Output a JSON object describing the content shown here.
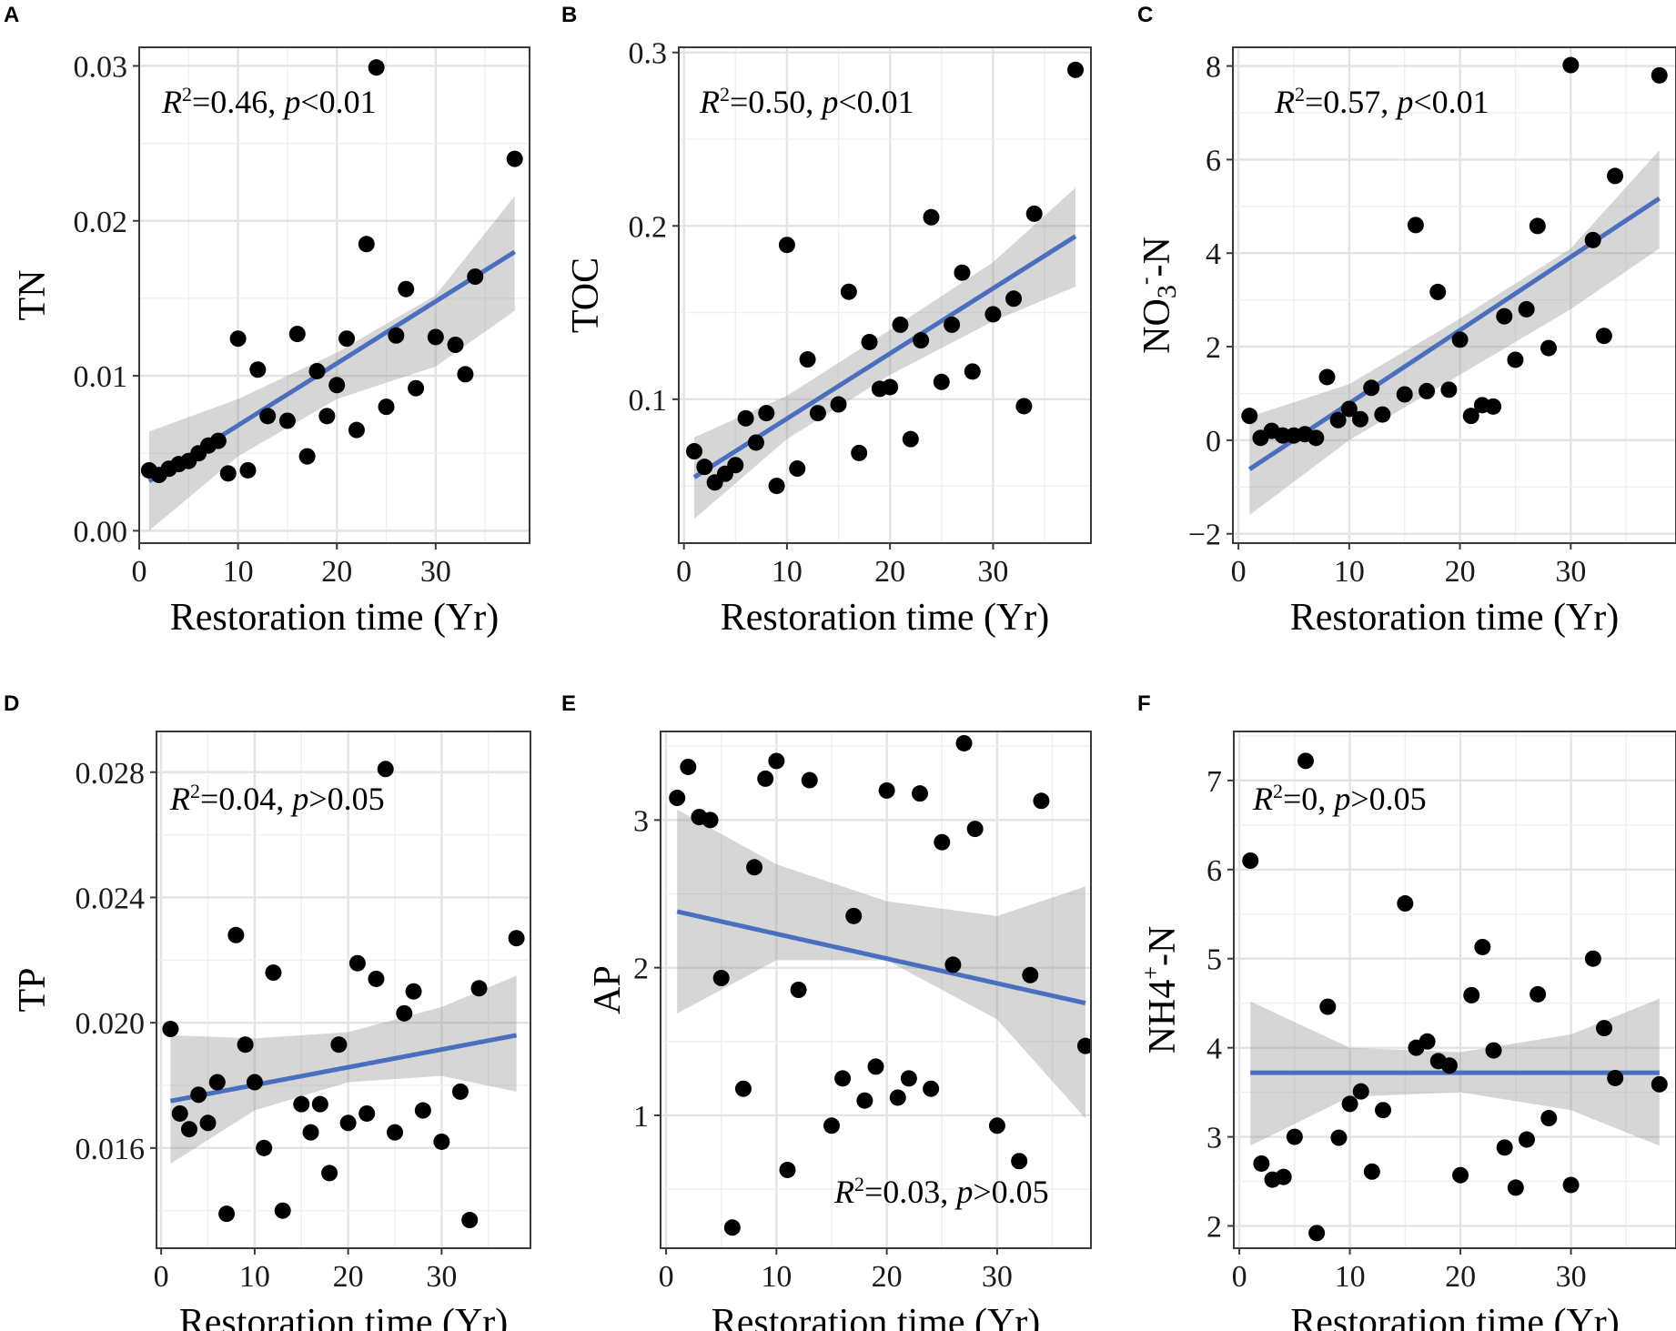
{
  "figure": {
    "colors": {
      "points": "#000000",
      "fit_line": "#4a6fbf",
      "ci_band": "#999999",
      "grid": "#e3e3e3",
      "frame": "#3a3a3a"
    }
  },
  "chart_data": [
    {
      "panel": "A",
      "type": "scatter",
      "xlabel": "Restoration time (Yr)",
      "ylabel": "TN",
      "xlim": [
        0,
        39.5
      ],
      "ylim": [
        -0.0008,
        0.0312
      ],
      "xticks": [
        0,
        10,
        20,
        30
      ],
      "xtick_labels": [
        "0",
        "10",
        "20",
        "30"
      ],
      "yticks": [
        0,
        0.01,
        0.02,
        0.03
      ],
      "ytick_labels": [
        "0.00",
        "0.01",
        "0.02",
        "0.03"
      ],
      "annotation": {
        "r2_label": "R",
        "r2_sup": "2",
        "r2_value": "=0.46, ",
        "p_label": "p",
        "p_value": "<0.01",
        "position": "top-left"
      },
      "fit": {
        "x": [
          1,
          38
        ],
        "y": [
          0.0032,
          0.018
        ]
      },
      "ci": {
        "x": [
          1,
          10,
          20,
          30,
          38
        ],
        "upper": [
          0.0064,
          0.0085,
          0.0115,
          0.0152,
          0.0216
        ],
        "lower": [
          0.0,
          0.0048,
          0.0085,
          0.0106,
          0.0142
        ]
      },
      "points": {
        "x": [
          1,
          2,
          3,
          4,
          5,
          6,
          7,
          8,
          9,
          10,
          11,
          12,
          13,
          15,
          16,
          17,
          18,
          19,
          20,
          21,
          22,
          23,
          25,
          26,
          27,
          28,
          30,
          32,
          33,
          34,
          24,
          38
        ],
        "y": [
          0.0039,
          0.0036,
          0.004,
          0.0043,
          0.0045,
          0.005,
          0.0055,
          0.0058,
          0.0037,
          0.0124,
          0.0039,
          0.0104,
          0.0074,
          0.0071,
          0.0127,
          0.0048,
          0.0103,
          0.0074,
          0.0094,
          0.0124,
          0.0065,
          0.0185,
          0.008,
          0.0126,
          0.0156,
          0.0092,
          0.0125,
          0.012,
          0.0101,
          0.0164,
          0.0299,
          0.024
        ]
      }
    },
    {
      "panel": "B",
      "type": "scatter",
      "xlabel": "Restoration time (Yr)",
      "ylabel": "TOC",
      "xlim": [
        -0.5,
        39.5
      ],
      "ylim": [
        0.017,
        0.303
      ],
      "xticks": [
        0,
        10,
        20,
        30
      ],
      "xtick_labels": [
        "0",
        "10",
        "20",
        "30"
      ],
      "yticks": [
        0.1,
        0.2,
        0.3
      ],
      "ytick_labels": [
        "0.1",
        "0.2",
        "0.3"
      ],
      "annotation": {
        "r2_label": "R",
        "r2_sup": "2",
        "r2_value": "=0.50, ",
        "p_label": "p",
        "p_value": "<0.01",
        "position": "top-left"
      },
      "fit": {
        "x": [
          1,
          38
        ],
        "y": [
          0.055,
          0.194
        ]
      },
      "ci": {
        "x": [
          1,
          10,
          20,
          30,
          38
        ],
        "upper": [
          0.078,
          0.102,
          0.14,
          0.179,
          0.222
        ],
        "lower": [
          0.031,
          0.077,
          0.114,
          0.145,
          0.165
        ]
      },
      "points": {
        "x": [
          1,
          2,
          3,
          4,
          5,
          6,
          7,
          8,
          9,
          10,
          11,
          12,
          13,
          15,
          16,
          17,
          18,
          19,
          20,
          21,
          22,
          23,
          24,
          25,
          26,
          27,
          28,
          30,
          32,
          33,
          34,
          38
        ],
        "y": [
          0.07,
          0.061,
          0.052,
          0.057,
          0.062,
          0.089,
          0.075,
          0.092,
          0.05,
          0.189,
          0.06,
          0.123,
          0.092,
          0.097,
          0.162,
          0.069,
          0.133,
          0.106,
          0.107,
          0.143,
          0.077,
          0.134,
          0.205,
          0.11,
          0.143,
          0.173,
          0.116,
          0.149,
          0.158,
          0.096,
          0.207,
          0.29
        ]
      }
    },
    {
      "panel": "C",
      "type": "scatter",
      "xlabel": "Restoration time (Yr)",
      "ylabel": "NO",
      "ylabel_sub": "3",
      "ylabel_sup": "-",
      "ylabel_tail": "-N",
      "xlim": [
        -0.5,
        39.5
      ],
      "ylim": [
        -2.2,
        8.4
      ],
      "xticks": [
        0,
        10,
        20,
        30
      ],
      "xtick_labels": [
        "0",
        "10",
        "20",
        "30"
      ],
      "yticks": [
        -2,
        0,
        2,
        4,
        6,
        8
      ],
      "ytick_labels": [
        "−2",
        "0",
        "2",
        "4",
        "6",
        "8"
      ],
      "annotation": {
        "r2_label": "R",
        "r2_sup": "2",
        "r2_value": "=0.57, ",
        "p_label": "p",
        "p_value": "<0.01",
        "position": "top-left"
      },
      "fit": {
        "x": [
          1,
          38
        ],
        "y": [
          -0.62,
          5.17
        ]
      },
      "ci": {
        "x": [
          1,
          10,
          20,
          30,
          38
        ],
        "upper": [
          0.5,
          1.2,
          2.6,
          4.1,
          6.2
        ],
        "lower": [
          -1.6,
          0.0,
          1.4,
          2.8,
          4.1
        ]
      },
      "points": {
        "x": [
          1,
          2,
          3,
          4,
          5,
          6,
          7,
          8,
          9,
          10,
          11,
          12,
          13,
          15,
          16,
          17,
          18,
          19,
          20,
          21,
          22,
          23,
          24,
          25,
          26,
          27,
          28,
          30,
          32,
          33,
          34,
          38
        ],
        "y": [
          0.52,
          0.05,
          0.2,
          0.1,
          0.1,
          0.13,
          0.05,
          1.35,
          0.43,
          0.67,
          0.45,
          1.12,
          0.55,
          0.98,
          4.6,
          1.05,
          3.17,
          1.08,
          2.15,
          0.52,
          0.75,
          0.72,
          2.65,
          1.72,
          2.8,
          4.58,
          1.97,
          8.02,
          4.28,
          2.23,
          5.65,
          7.8
        ]
      }
    },
    {
      "panel": "D",
      "type": "scatter",
      "xlabel": "Restoration time (Yr)",
      "ylabel": "TP",
      "xlim": [
        -0.5,
        39.5
      ],
      "ylim": [
        0.0128,
        0.0293
      ],
      "xticks": [
        0,
        10,
        20,
        30
      ],
      "xtick_labels": [
        "0",
        "10",
        "20",
        "30"
      ],
      "yticks": [
        0.016,
        0.02,
        0.024,
        0.028
      ],
      "ytick_labels": [
        "0.016",
        "0.020",
        "0.024",
        "0.028"
      ],
      "annotation": {
        "r2_label": "R",
        "r2_sup": "2",
        "r2_value": "=0.04, ",
        "p_label": "p",
        "p_value": ">0.05",
        "position": "top-left"
      },
      "fit": {
        "x": [
          1,
          38
        ],
        "y": [
          0.0175,
          0.0196
        ]
      },
      "ci": {
        "x": [
          1,
          10,
          20,
          30,
          38
        ],
        "upper": [
          0.0196,
          0.0195,
          0.0197,
          0.0205,
          0.0215
        ],
        "lower": [
          0.0155,
          0.0172,
          0.0181,
          0.0183,
          0.0178
        ]
      },
      "points": {
        "x": [
          1,
          2,
          3,
          4,
          5,
          6,
          7,
          8,
          9,
          10,
          11,
          12,
          13,
          15,
          16,
          17,
          18,
          19,
          20,
          21,
          22,
          23,
          24,
          25,
          26,
          27,
          28,
          30,
          32,
          33,
          34,
          38
        ],
        "y": [
          0.0198,
          0.0171,
          0.0166,
          0.0177,
          0.0168,
          0.0181,
          0.0139,
          0.0228,
          0.0193,
          0.0181,
          0.016,
          0.0216,
          0.014,
          0.0174,
          0.0165,
          0.0174,
          0.0152,
          0.0193,
          0.0168,
          0.0219,
          0.0171,
          0.0214,
          0.0281,
          0.0165,
          0.0203,
          0.021,
          0.0172,
          0.0162,
          0.0178,
          0.0137,
          0.0211,
          0.0227
        ]
      }
    },
    {
      "panel": "E",
      "type": "scatter",
      "xlabel": "Restoration time (Yr)",
      "ylabel": "AP",
      "xlim": [
        -0.5,
        38.5
      ],
      "ylim": [
        0.1,
        3.6
      ],
      "xticks": [
        0,
        10,
        20,
        30
      ],
      "xtick_labels": [
        "0",
        "10",
        "20",
        "30"
      ],
      "yticks": [
        1,
        2,
        3
      ],
      "ytick_labels": [
        "1",
        "2",
        "3"
      ],
      "annotation": {
        "r2_label": "R",
        "r2_sup": "2",
        "r2_value": "=0.03, ",
        "p_label": "p",
        "p_value": ">0.05",
        "position": "bottom-right"
      },
      "fit": {
        "x": [
          1,
          38
        ],
        "y": [
          2.38,
          1.76
        ]
      },
      "ci": {
        "x": [
          1,
          10,
          20,
          30,
          38
        ],
        "upper": [
          3.07,
          2.7,
          2.45,
          2.35,
          2.55
        ],
        "lower": [
          1.69,
          2.05,
          2.05,
          1.65,
          0.98
        ]
      },
      "points": {
        "x": [
          1,
          2,
          3,
          4,
          5,
          6,
          7,
          8,
          9,
          10,
          11,
          12,
          13,
          15,
          16,
          17,
          18,
          19,
          20,
          21,
          22,
          23,
          24,
          25,
          26,
          27,
          28,
          30,
          32,
          33,
          34,
          38
        ],
        "y": [
          3.15,
          3.36,
          3.02,
          3.0,
          1.93,
          0.24,
          1.18,
          2.68,
          3.28,
          3.4,
          0.63,
          1.85,
          3.27,
          0.93,
          1.25,
          2.35,
          1.1,
          1.33,
          3.2,
          1.12,
          1.25,
          3.18,
          1.18,
          2.85,
          2.02,
          3.52,
          2.94,
          0.93,
          0.69,
          1.95,
          3.13,
          1.47
        ]
      }
    },
    {
      "panel": "F",
      "type": "scatter",
      "xlabel": "Restoration time (Yr)",
      "ylabel": "NH4",
      "ylabel_sup": "+",
      "ylabel_tail": "-N",
      "xlim": [
        -0.5,
        39.5
      ],
      "ylim": [
        1.75,
        7.55
      ],
      "xticks": [
        0,
        10,
        20,
        30
      ],
      "xtick_labels": [
        "0",
        "10",
        "20",
        "30"
      ],
      "yticks": [
        2,
        3,
        4,
        5,
        6,
        7
      ],
      "ytick_labels": [
        "2",
        "3",
        "4",
        "5",
        "6",
        "7"
      ],
      "annotation": {
        "r2_label": "R",
        "r2_sup": "2",
        "r2_value": "=0, ",
        "p_label": "p",
        "p_value": ">0.05",
        "position": "top-left"
      },
      "fit": {
        "x": [
          1,
          38
        ],
        "y": [
          3.72,
          3.72
        ]
      },
      "ci": {
        "x": [
          1,
          10,
          20,
          30,
          38
        ],
        "upper": [
          4.52,
          4.0,
          3.95,
          4.15,
          4.55
        ],
        "lower": [
          2.9,
          3.45,
          3.5,
          3.3,
          2.9
        ]
      },
      "points": {
        "x": [
          1,
          2,
          3,
          4,
          5,
          6,
          7,
          8,
          9,
          10,
          11,
          12,
          13,
          15,
          16,
          17,
          18,
          19,
          20,
          21,
          22,
          23,
          24,
          25,
          26,
          27,
          28,
          30,
          32,
          33,
          34,
          38
        ],
        "y": [
          6.1,
          2.7,
          2.52,
          2.55,
          3.0,
          7.22,
          1.92,
          4.46,
          2.99,
          3.37,
          3.51,
          2.61,
          3.3,
          5.62,
          4.0,
          4.07,
          3.85,
          3.8,
          2.57,
          4.59,
          5.13,
          3.97,
          2.88,
          2.43,
          2.97,
          4.6,
          3.21,
          2.46,
          5.0,
          4.22,
          3.66,
          3.59
        ]
      }
    }
  ]
}
